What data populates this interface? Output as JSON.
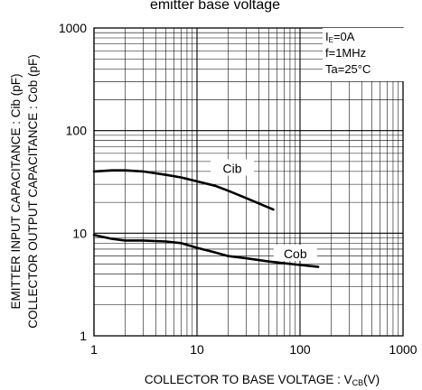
{
  "chart_data": {
    "type": "line",
    "title": "emitter base voltage",
    "xlabel": "COLLECTOR TO BASE VOLTAGE : V",
    "xlabel_sub": "CB",
    "xlabel_unit": "(V)",
    "ylabel_line1": "EMITTER INPUT CAPACITANCE : Cib (pF)",
    "ylabel_line2": "COLLECTOR OUTPUT CAPACITANCE : Cob (pF)",
    "x_scale": "log",
    "y_scale": "log",
    "xlim": [
      1,
      1000
    ],
    "ylim": [
      1,
      1000
    ],
    "x_ticks": [
      "1",
      "10",
      "100",
      "1000"
    ],
    "y_ticks": [
      "1",
      "10",
      "100",
      "1000"
    ],
    "grid": true,
    "conditions": [
      "IE=0A",
      "f=1MHz",
      "Ta=25°C"
    ],
    "series": [
      {
        "name": "Cib",
        "x": [
          1,
          1.5,
          2,
          3,
          5,
          7,
          10,
          15,
          20,
          30,
          40,
          55
        ],
        "y": [
          40,
          41,
          41,
          40,
          37,
          35,
          32,
          29,
          26,
          22,
          19.5,
          17
        ]
      },
      {
        "name": "Cob",
        "x": [
          1,
          1.5,
          2,
          3,
          5,
          7,
          10,
          15,
          20,
          30,
          50,
          70,
          100,
          150
        ],
        "y": [
          9.6,
          8.8,
          8.5,
          8.5,
          8.3,
          8.0,
          7.2,
          6.5,
          6.0,
          5.7,
          5.3,
          5.1,
          4.9,
          4.7
        ]
      }
    ]
  }
}
